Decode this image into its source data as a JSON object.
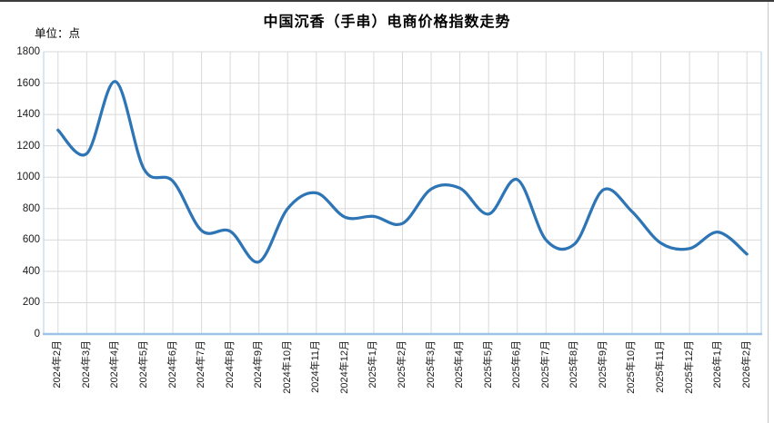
{
  "title": "中国沉香（手串）电商价格指数走势",
  "unit_label": "单位：点",
  "colors": {
    "line": "#2E75B6",
    "grid": "#D9D9D9",
    "plot_border": "#BDD7EE",
    "axis_line": "#9DC3E6",
    "text": "#1a1a1a"
  },
  "chart_data": {
    "type": "line",
    "title": "中国沉香（手串）电商价格指数走势",
    "ylabel": "单位：点",
    "xlabel": "",
    "smooth": true,
    "grid": true,
    "legend_position": "none",
    "ylim": [
      0,
      1800
    ],
    "y_ticks": [
      0,
      200,
      400,
      600,
      800,
      1000,
      1200,
      1400,
      1600,
      1800
    ],
    "categories": [
      "2024年2月",
      "2024年3月",
      "2024年4月",
      "2024年5月",
      "2024年6月",
      "2024年7月",
      "2024年8月",
      "2024年9月",
      "2024年10月",
      "2024年11月",
      "2024年12月",
      "2025年1月",
      "2025年2月",
      "2025年3月",
      "2025年4月",
      "2025年5月",
      "2025年6月",
      "2025年7月",
      "2025年8月",
      "2025年9月",
      "2025年10月",
      "2025年11月",
      "2025年12月",
      "2026年1月",
      "2026年2月"
    ],
    "series": [
      {
        "name": "中国沉香（手串）电商价格指数",
        "values": [
          1300,
          1150,
          1610,
          1050,
          975,
          660,
          655,
          460,
          800,
          900,
          745,
          750,
          705,
          925,
          930,
          765,
          985,
          600,
          575,
          920,
          780,
          580,
          545,
          650,
          510
        ]
      }
    ]
  }
}
